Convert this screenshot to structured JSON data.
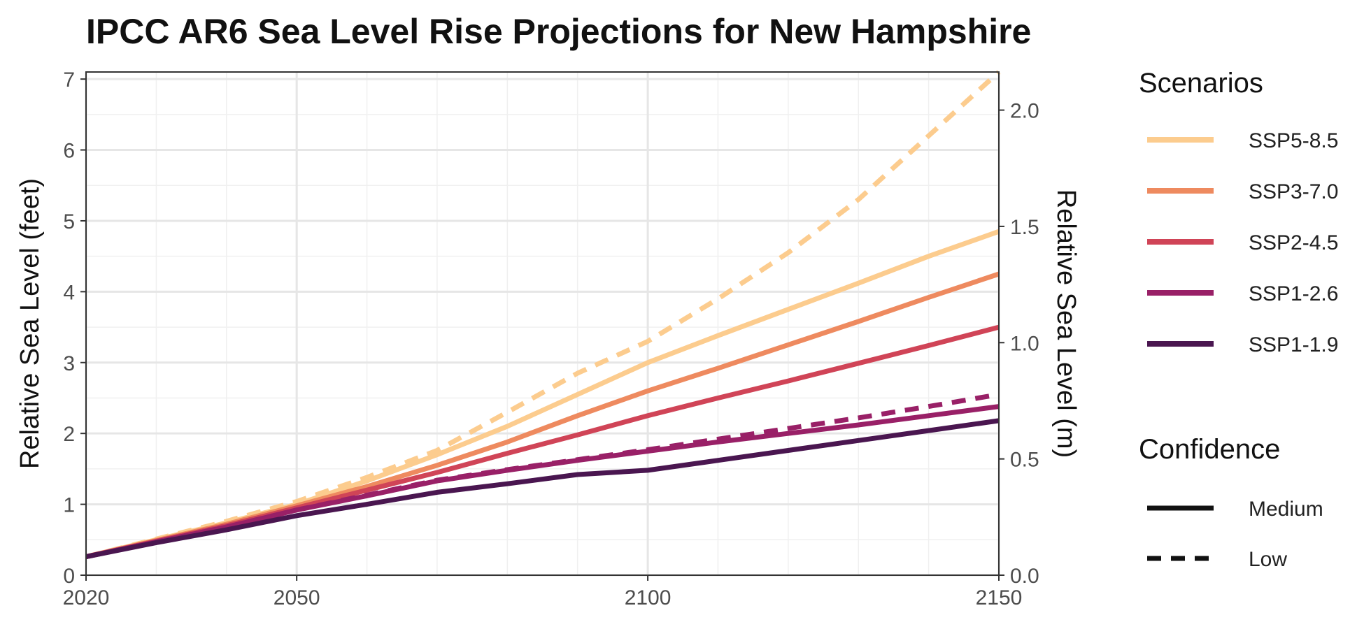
{
  "chart_data": {
    "type": "line",
    "title": "IPCC AR6 Sea Level Rise Projections for New Hampshire",
    "ylabel": "Relative Sea Level (feet)",
    "ylabel_right": "Relative Sea Level (m)",
    "xlim": [
      2020,
      2150
    ],
    "ylim": [
      0,
      7.1
    ],
    "ylim_right_m": [
      0,
      2.164
    ],
    "x_ticks": [
      2020,
      2050,
      2100,
      2150
    ],
    "x_minor_ticks": [
      2030,
      2040,
      2060,
      2070,
      2080,
      2090,
      2110,
      2120,
      2130,
      2140
    ],
    "y_ticks": [
      0,
      1,
      2,
      3,
      4,
      5,
      6,
      7
    ],
    "y_ticks_right": [
      "0.0",
      "0.5",
      "1.0",
      "1.5",
      "2.0"
    ],
    "grid": true,
    "legend_position": "right",
    "x": [
      2020,
      2030,
      2040,
      2050,
      2060,
      2070,
      2080,
      2090,
      2100,
      2110,
      2120,
      2130,
      2140,
      2150
    ],
    "series": [
      {
        "name": "SSP5-8.5",
        "confidence": "Medium",
        "color": "#FCCC8E",
        "values": [
          0.26,
          0.5,
          0.74,
          1.0,
          1.33,
          1.7,
          2.1,
          2.55,
          3.0,
          3.38,
          3.75,
          4.12,
          4.5,
          4.85
        ]
      },
      {
        "name": "SSP5-8.5",
        "confidence": "Low",
        "color": "#FCCC8E",
        "values": [
          0.26,
          0.51,
          0.76,
          1.04,
          1.38,
          1.76,
          2.3,
          2.85,
          3.3,
          3.9,
          4.55,
          5.3,
          6.2,
          7.1
        ]
      },
      {
        "name": "SSP3-7.0",
        "confidence": "Medium",
        "color": "#EE8A5F",
        "values": [
          0.26,
          0.49,
          0.72,
          0.98,
          1.25,
          1.55,
          1.88,
          2.25,
          2.6,
          2.92,
          3.25,
          3.58,
          3.92,
          4.25
        ]
      },
      {
        "name": "SSP2-4.5",
        "confidence": "Medium",
        "color": "#D04457",
        "values": [
          0.26,
          0.48,
          0.7,
          0.95,
          1.2,
          1.45,
          1.72,
          1.98,
          2.25,
          2.5,
          2.74,
          2.99,
          3.24,
          3.5
        ]
      },
      {
        "name": "SSP1-2.6",
        "confidence": "Medium",
        "color": "#992067",
        "values": [
          0.26,
          0.47,
          0.68,
          0.92,
          1.12,
          1.33,
          1.48,
          1.62,
          1.75,
          1.88,
          2.0,
          2.12,
          2.25,
          2.38
        ]
      },
      {
        "name": "SSP1-2.6",
        "confidence": "Low",
        "color": "#992067",
        "values": [
          0.26,
          0.47,
          0.68,
          0.92,
          1.13,
          1.34,
          1.49,
          1.63,
          1.77,
          1.92,
          2.07,
          2.22,
          2.38,
          2.55
        ]
      },
      {
        "name": "SSP1-1.9",
        "confidence": "Medium",
        "color": "#4A1650",
        "values": [
          0.26,
          0.46,
          0.64,
          0.84,
          1.0,
          1.17,
          1.29,
          1.42,
          1.48,
          1.62,
          1.76,
          1.9,
          2.04,
          2.18
        ]
      }
    ],
    "legend": {
      "scenarios_title": "Scenarios",
      "scenarios": [
        {
          "label": "SSP5-8.5",
          "color": "#FCCC8E"
        },
        {
          "label": "SSP3-7.0",
          "color": "#EE8A5F"
        },
        {
          "label": "SSP2-4.5",
          "color": "#D04457"
        },
        {
          "label": "SSP1-2.6",
          "color": "#992067"
        },
        {
          "label": "SSP1-1.9",
          "color": "#4A1650"
        }
      ],
      "confidence_title": "Confidence",
      "confidence": [
        {
          "label": "Medium",
          "style": "solid"
        },
        {
          "label": "Low",
          "style": "dashed"
        }
      ]
    }
  }
}
